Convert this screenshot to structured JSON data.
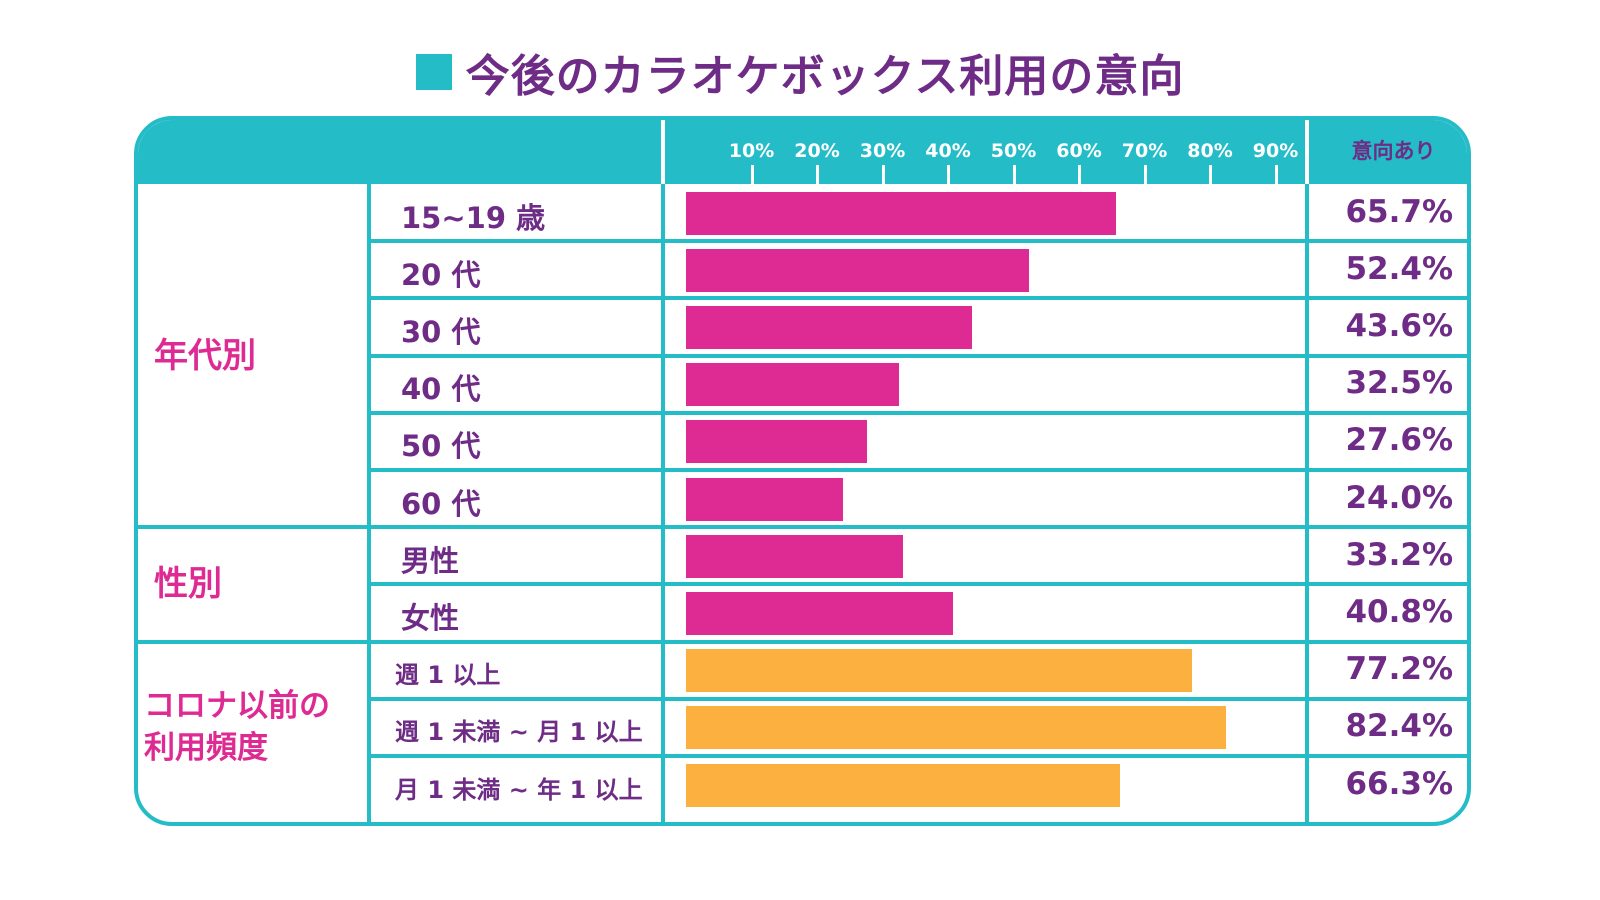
{
  "title": "今後のカラオケボックス利用の意向",
  "colors": {
    "teal": "#24bcc7",
    "purple_text": "#6e2c86",
    "magenta": "#de2a93",
    "orange": "#fbb040"
  },
  "chart_data": {
    "type": "bar",
    "orientation": "horizontal",
    "title": "今後のカラオケボックス利用の意向",
    "value_header": "意向あり",
    "xlim": [
      0,
      100
    ],
    "x_ticks": [
      "10%",
      "20%",
      "30%",
      "40%",
      "50%",
      "60%",
      "70%",
      "80%",
      "90%"
    ],
    "groups": [
      {
        "name": "年代別",
        "rows": [
          {
            "label": "15~19 歳",
            "value": 65.7,
            "display": "65.7%",
            "color": "#de2a93"
          },
          {
            "label": "20 代",
            "value": 52.4,
            "display": "52.4%",
            "color": "#de2a93"
          },
          {
            "label": "30 代",
            "value": 43.6,
            "display": "43.6%",
            "color": "#de2a93"
          },
          {
            "label": "40 代",
            "value": 32.5,
            "display": "32.5%",
            "color": "#de2a93"
          },
          {
            "label": "50 代",
            "value": 27.6,
            "display": "27.6%",
            "color": "#de2a93"
          },
          {
            "label": "60 代",
            "value": 24.0,
            "display": "24.0%",
            "color": "#de2a93"
          }
        ]
      },
      {
        "name": "性別",
        "rows": [
          {
            "label": "男性",
            "value": 33.2,
            "display": "33.2%",
            "color": "#de2a93"
          },
          {
            "label": "女性",
            "value": 40.8,
            "display": "40.8%",
            "color": "#de2a93"
          }
        ]
      },
      {
        "name": "コロナ以前の利用頻度",
        "name_lines": [
          "コロナ以前の",
          "利用頻度"
        ],
        "rows": [
          {
            "label": "週 1 以上",
            "value": 77.2,
            "display": "77.2%",
            "color": "#fbb040"
          },
          {
            "label": "週 1 未満 ~ 月 1 以上",
            "value": 82.4,
            "display": "82.4%",
            "color": "#fbb040"
          },
          {
            "label": "月 1 未満 ~ 年 1 以上",
            "value": 66.3,
            "display": "66.3%",
            "color": "#fbb040"
          }
        ]
      }
    ]
  }
}
